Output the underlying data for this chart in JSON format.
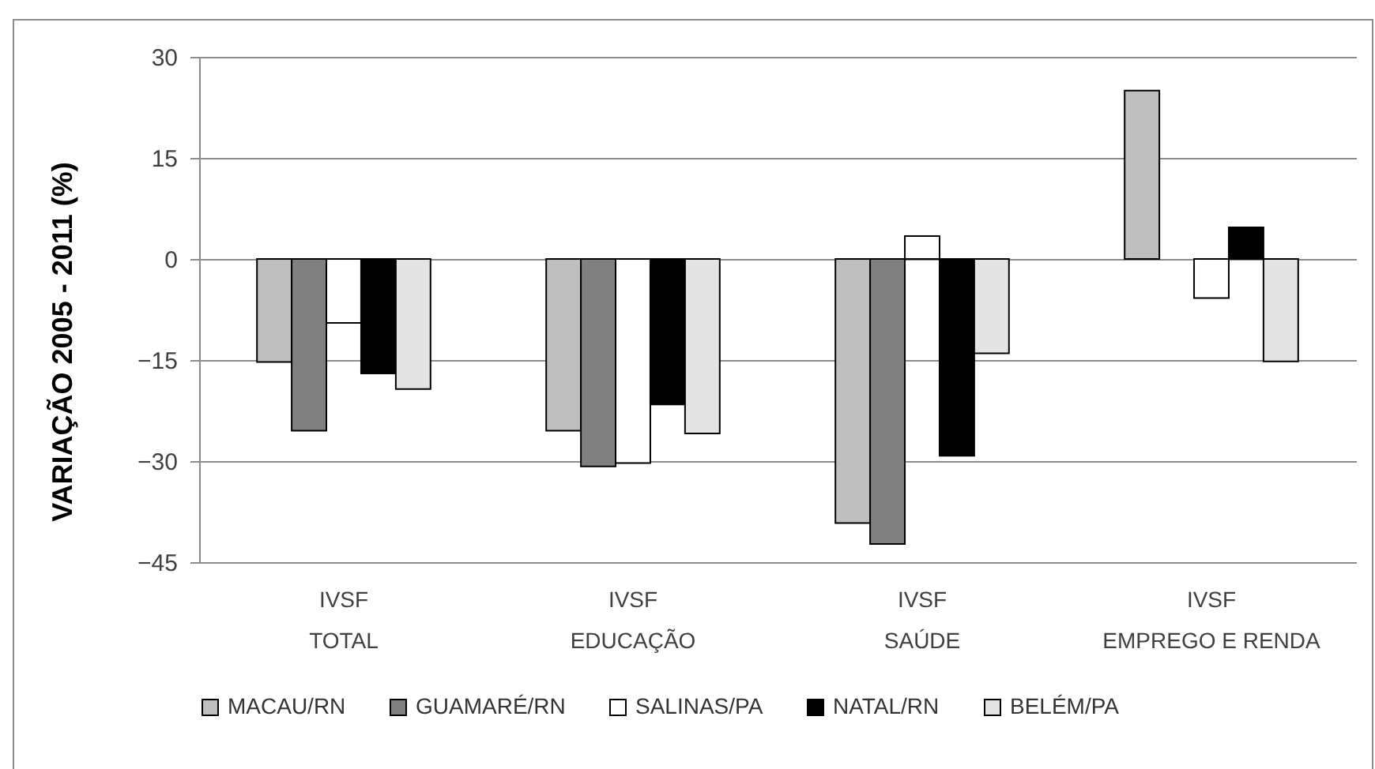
{
  "chart_data": {
    "type": "bar",
    "ylabel": "VARIAÇÃO 2005 - 2011 (%)",
    "categories": [
      "IVSF\nTOTAL",
      "IVSF\nEDUCAÇÃO",
      "IVSF\nSAÚDE",
      "IVSF\nEMPREGO E RENDA"
    ],
    "series": [
      {
        "name": "MACAU/RN",
        "color": "#bfbfbf",
        "values": [
          -15.3,
          -25.5,
          -39.2,
          25
        ]
      },
      {
        "name": "GUAMARÉ/RN",
        "color": "#808080",
        "values": [
          -25.5,
          -30.8,
          -42.3,
          null
        ]
      },
      {
        "name": "SALINAS/PA",
        "color": "#ffffff",
        "values": [
          -9.5,
          -30.3,
          3.4,
          -5.8
        ]
      },
      {
        "name": "NATAL/RN",
        "color": "#000000",
        "values": [
          -17,
          -21.6,
          -29.2,
          4.7
        ]
      },
      {
        "name": "BELÉM/PA",
        "color": "#e4e4e4",
        "values": [
          -19.3,
          -25.9,
          -14,
          -15.2
        ]
      }
    ],
    "ylim": [
      -45,
      30
    ],
    "yticks": [
      -45,
      -30,
      -15,
      0,
      15,
      30
    ],
    "grid": "y",
    "legend": "bottom"
  }
}
